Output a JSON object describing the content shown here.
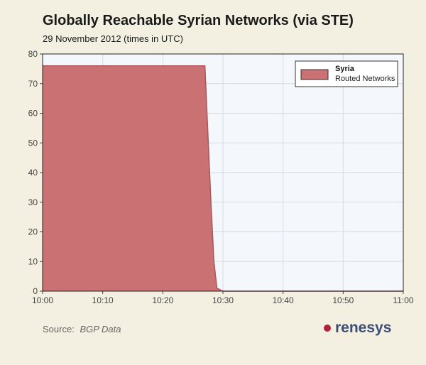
{
  "header": {
    "title": "Globally Reachable Syrian Networks (via STE)",
    "subtitle": "29 November 2012 (times in UTC)"
  },
  "footer": {
    "source_label": "Source:",
    "source_value": "BGP Data",
    "brand": "renesys"
  },
  "colors": {
    "background": "#f3f0e1",
    "plot_bg": "#f4f7fb",
    "grid": "#d6dbe3",
    "series_fill": "#c97173",
    "series_stroke": "#b05558",
    "brand_dot": "#b21f3a",
    "brand_text": "#3c4f78"
  },
  "chart_data": {
    "type": "area",
    "title": "Globally Reachable Syrian Networks (via STE)",
    "subtitle": "29 November 2012 (times in UTC)",
    "x_unit": "time (UTC)",
    "xlim": [
      "10:00",
      "11:00"
    ],
    "ylim": [
      0,
      80
    ],
    "x_ticks": [
      "10:00",
      "10:10",
      "10:20",
      "10:30",
      "10:40",
      "10:50",
      "11:00"
    ],
    "y_ticks": [
      0,
      10,
      20,
      30,
      40,
      50,
      60,
      70,
      80
    ],
    "grid": true,
    "legend": {
      "placement": "top-right",
      "entries": [
        {
          "name": "Syria",
          "label": "Routed Networks"
        }
      ]
    },
    "series": [
      {
        "name": "Syria",
        "label": "Routed Networks",
        "points": [
          [
            "10:00",
            76
          ],
          [
            "10:27",
            76
          ],
          [
            "10:28",
            30
          ],
          [
            "10:28.5",
            10
          ],
          [
            "10:29",
            1
          ],
          [
            "10:30",
            0
          ],
          [
            "11:00",
            0
          ]
        ]
      }
    ]
  }
}
